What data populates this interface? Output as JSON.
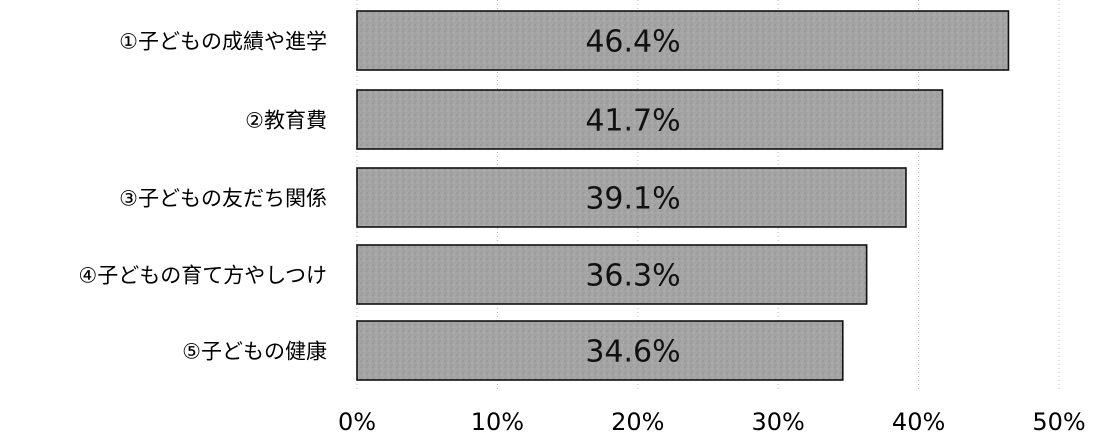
{
  "chart_data": {
    "type": "bar",
    "orientation": "horizontal",
    "categories": [
      "①子どもの成績や進学",
      "②教育費",
      "③子どもの友だち関係",
      "④子どもの育て方やしつけ",
      "⑤子どもの健康"
    ],
    "values": [
      46.4,
      41.7,
      39.1,
      36.3,
      34.6
    ],
    "value_labels": [
      "46.4%",
      "41.7%",
      "39.1%",
      "36.3%",
      "34.6%"
    ],
    "x_ticks": [
      "0%",
      "10%",
      "20%",
      "30%",
      "40%",
      "50%"
    ],
    "xlim": [
      0,
      50
    ],
    "title": "",
    "xlabel": "",
    "ylabel": "",
    "grid": true,
    "legend": "none",
    "colors": {
      "bar_fill": "#a7a7a7",
      "bar_border": "#111111",
      "grid": "#b8b8b8"
    }
  }
}
